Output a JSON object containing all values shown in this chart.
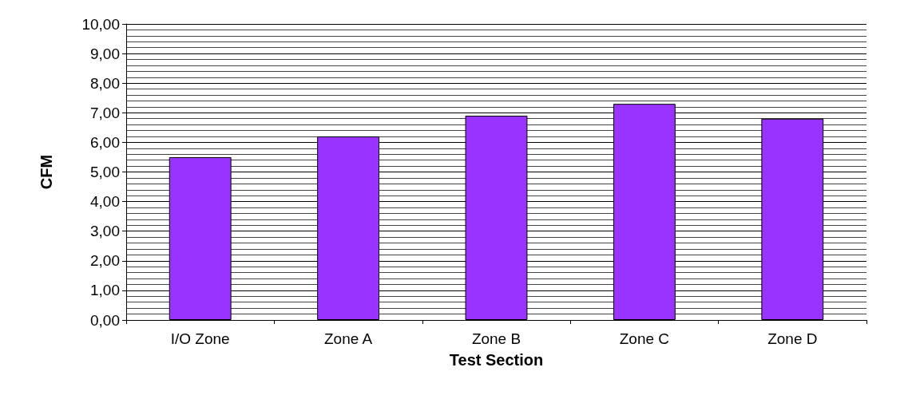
{
  "chart_data": {
    "type": "bar",
    "xlabel": "Test Section",
    "ylabel": "CFM",
    "categories": [
      "I/O Zone",
      "Zone A",
      "Zone B",
      "Zone C",
      "Zone D"
    ],
    "values": [
      5.5,
      6.2,
      6.9,
      7.3,
      6.8
    ],
    "color": "#9933ff",
    "ylim": [
      0,
      10
    ],
    "yticks": [
      {
        "value": 0,
        "label": "0,00"
      },
      {
        "value": 1,
        "label": "1,00"
      },
      {
        "value": 2,
        "label": "2,00"
      },
      {
        "value": 3,
        "label": "3,00"
      },
      {
        "value": 4,
        "label": "4,00"
      },
      {
        "value": 5,
        "label": "5,00"
      },
      {
        "value": 6,
        "label": "6,00"
      },
      {
        "value": 7,
        "label": "7,00"
      },
      {
        "value": 8,
        "label": "8,00"
      },
      {
        "value": 9,
        "label": "9,00"
      },
      {
        "value": 10,
        "label": "10,00"
      }
    ],
    "grid": "y"
  }
}
